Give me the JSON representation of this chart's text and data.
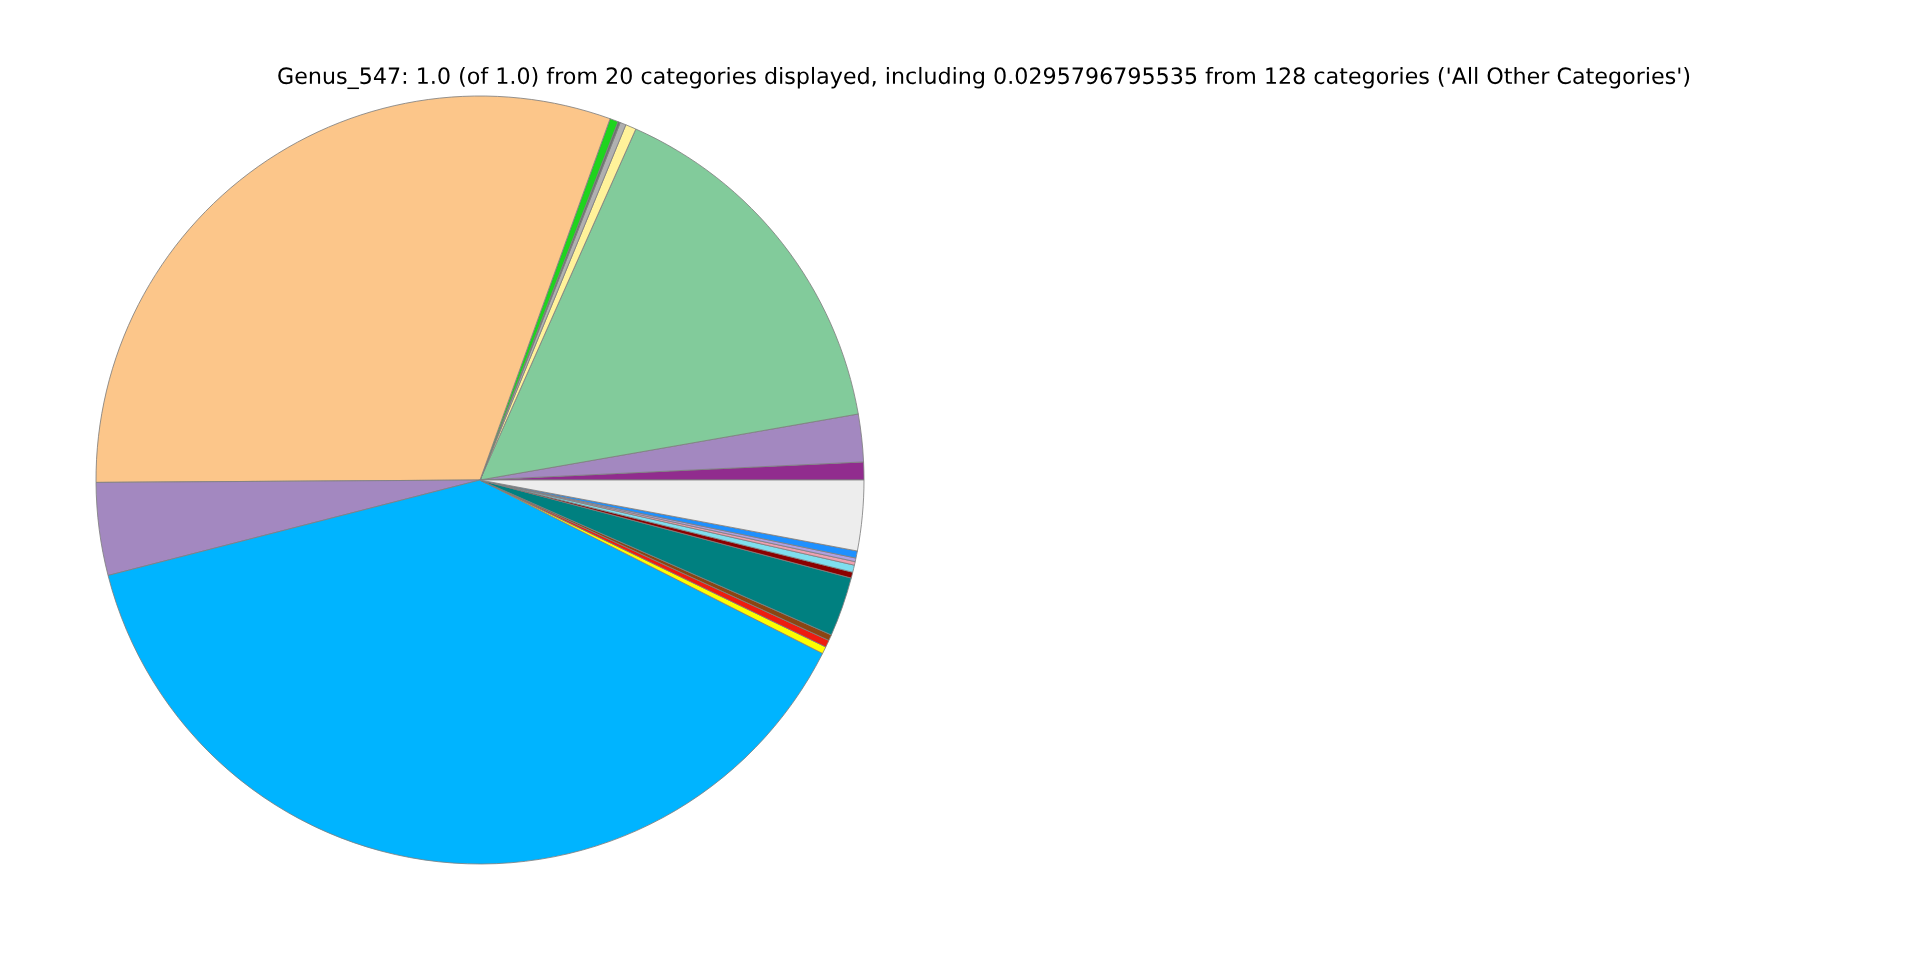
{
  "chart_data": {
    "type": "pie",
    "title": "Genus_547: 1.0 (of 1.0) from 20 categories displayed, including 0.0295796795535 from 128 categories ('All Other Categories')",
    "categories": [
      null,
      null,
      null,
      null,
      null,
      null,
      null,
      null,
      null,
      null,
      null,
      null,
      null,
      null,
      null,
      null,
      null,
      null,
      null,
      null
    ],
    "values": [
      0.75,
      2.0,
      15.6,
      0.45,
      0.25,
      0.1,
      0.35,
      30.6,
      3.9,
      38.54,
      0.3,
      0.3,
      0.25,
      2.5,
      0.25,
      0.3,
      0.15,
      0.15,
      0.3,
      2.96
    ],
    "colors": [
      "#912c8e",
      "#a388c0",
      "#82cb9b",
      "#fff29a",
      "#b0b0b0",
      "#707070",
      "#1ed41e",
      "#fcc68a",
      "#a388c0",
      "#00b4ff",
      "#ffff00",
      "#ee1c10",
      "#8b4513",
      "#008080",
      "#8b0000",
      "#7fdfef",
      "#f0a0b0",
      "#b0a0e0",
      "#1e90ff",
      "#ededed"
    ]
  }
}
